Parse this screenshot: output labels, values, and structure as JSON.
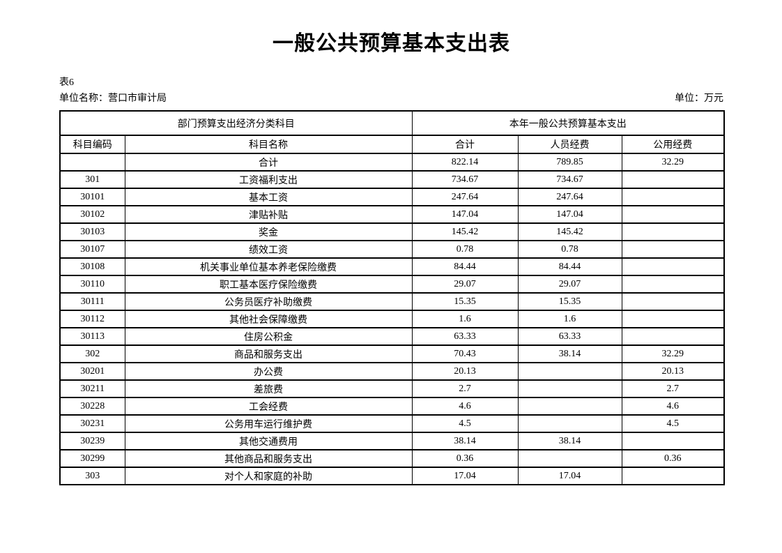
{
  "page": {
    "title": "一般公共预算基本支出表",
    "table_label": "表6",
    "unit_name": "单位名称：营口市审计局",
    "unit": "单位：万元"
  },
  "table": {
    "header_groups": [
      "部门预算支出经济分类科目",
      "本年一般公共预算基本支出"
    ],
    "columns": [
      "科目编码",
      "科目名称",
      "合计",
      "人员经费",
      "公用经费"
    ],
    "rows": [
      {
        "code": "",
        "name": "合计",
        "total": "822.14",
        "personnel": "789.85",
        "public": "32.29"
      },
      {
        "code": "301",
        "name": "工资福利支出",
        "total": "734.67",
        "personnel": "734.67",
        "public": ""
      },
      {
        "code": "30101",
        "name": "基本工资",
        "total": "247.64",
        "personnel": "247.64",
        "public": ""
      },
      {
        "code": "30102",
        "name": "津贴补贴",
        "total": "147.04",
        "personnel": "147.04",
        "public": ""
      },
      {
        "code": "30103",
        "name": "奖金",
        "total": "145.42",
        "personnel": "145.42",
        "public": ""
      },
      {
        "code": "30107",
        "name": "绩效工资",
        "total": "0.78",
        "personnel": "0.78",
        "public": ""
      },
      {
        "code": "30108",
        "name": "机关事业单位基本养老保险缴费",
        "total": "84.44",
        "personnel": "84.44",
        "public": ""
      },
      {
        "code": "30110",
        "name": "职工基本医疗保险缴费",
        "total": "29.07",
        "personnel": "29.07",
        "public": ""
      },
      {
        "code": "30111",
        "name": "公务员医疗补助缴费",
        "total": "15.35",
        "personnel": "15.35",
        "public": ""
      },
      {
        "code": "30112",
        "name": "其他社会保障缴费",
        "total": "1.6",
        "personnel": "1.6",
        "public": ""
      },
      {
        "code": "30113",
        "name": "住房公积金",
        "total": "63.33",
        "personnel": "63.33",
        "public": ""
      },
      {
        "code": "302",
        "name": "商品和服务支出",
        "total": "70.43",
        "personnel": "38.14",
        "public": "32.29"
      },
      {
        "code": "30201",
        "name": "办公费",
        "total": "20.13",
        "personnel": "",
        "public": "20.13"
      },
      {
        "code": "30211",
        "name": "差旅费",
        "total": "2.7",
        "personnel": "",
        "public": "2.7"
      },
      {
        "code": "30228",
        "name": "工会经费",
        "total": "4.6",
        "personnel": "",
        "public": "4.6"
      },
      {
        "code": "30231",
        "name": "公务用车运行维护费",
        "total": "4.5",
        "personnel": "",
        "public": "4.5"
      },
      {
        "code": "30239",
        "name": "其他交通费用",
        "total": "38.14",
        "personnel": "38.14",
        "public": ""
      },
      {
        "code": "30299",
        "name": "其他商品和服务支出",
        "total": "0.36",
        "personnel": "",
        "public": "0.36"
      },
      {
        "code": "303",
        "name": "对个人和家庭的补助",
        "total": "17.04",
        "personnel": "17.04",
        "public": ""
      }
    ]
  },
  "colors": {
    "text": "#000000",
    "border": "#000000",
    "background": "#ffffff"
  }
}
